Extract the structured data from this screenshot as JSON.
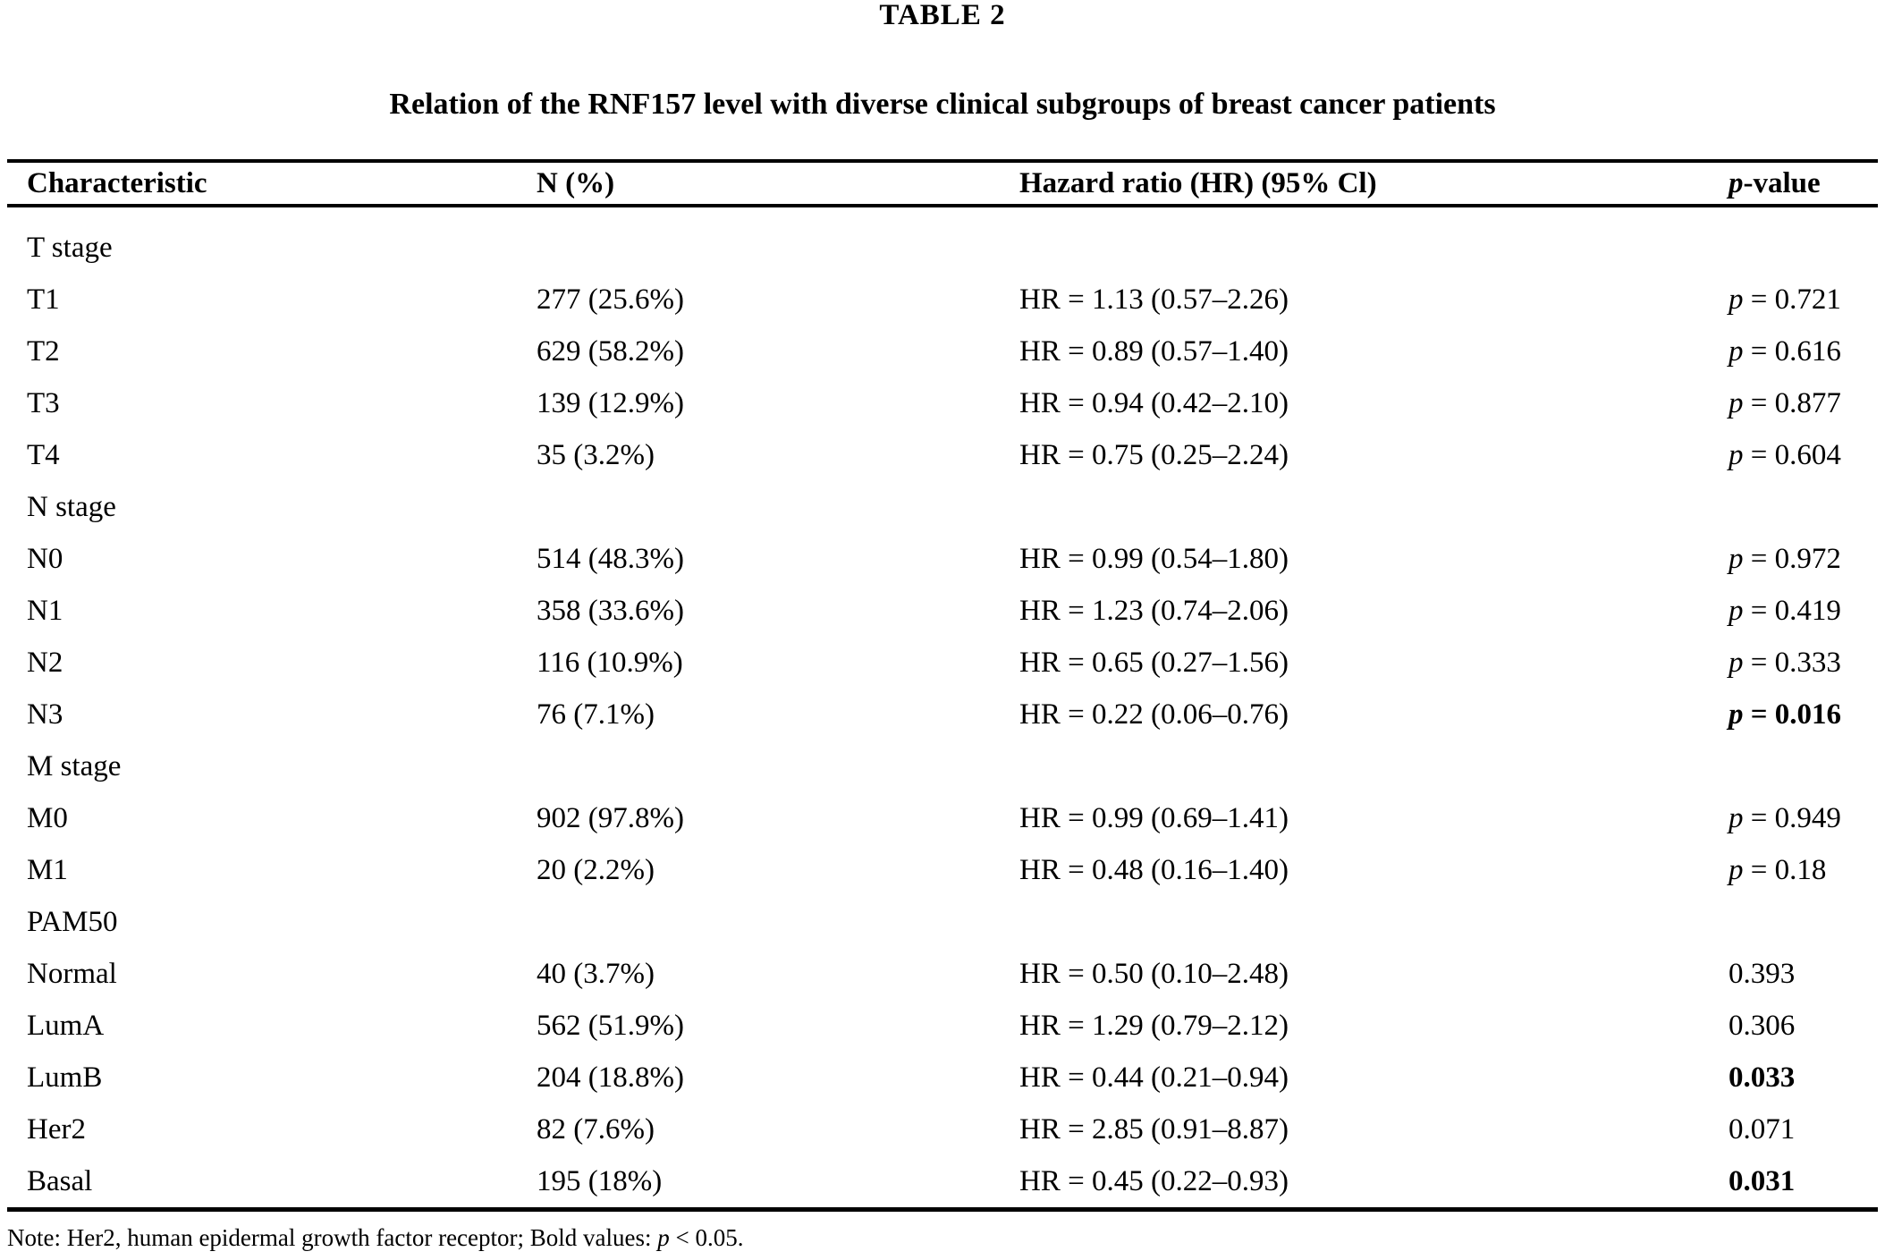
{
  "page": {
    "title": "TABLE 2",
    "subtitle": "Relation of the RNF157 level with diverse clinical subgroups of breast cancer patients"
  },
  "table": {
    "columns": [
      {
        "name": "characteristic",
        "parts": [
          {
            "text": "Characteristic"
          }
        ]
      },
      {
        "name": "n-percent",
        "parts": [
          {
            "text": "N (%)"
          }
        ]
      },
      {
        "name": "hazard-ratio",
        "parts": [
          {
            "text": "Hazard ratio (HR) (95% Cl)"
          }
        ]
      },
      {
        "name": "p-value",
        "parts": [
          {
            "text": "p",
            "italic": true
          },
          {
            "text": "-value"
          }
        ]
      }
    ],
    "rows": [
      {
        "group": true,
        "characteristic": "T stage",
        "n": "",
        "hr": "",
        "p_parts": [],
        "p_bold": false
      },
      {
        "group": false,
        "characteristic": "T1",
        "n": "277 (25.6%)",
        "hr": "HR = 1.13 (0.57–2.26)",
        "p_parts": [
          {
            "text": "p",
            "italic": true
          },
          {
            "text": " = 0.721"
          }
        ],
        "p_bold": false
      },
      {
        "group": false,
        "characteristic": "T2",
        "n": "629 (58.2%)",
        "hr": "HR = 0.89 (0.57–1.40)",
        "p_parts": [
          {
            "text": "p",
            "italic": true
          },
          {
            "text": " = 0.616"
          }
        ],
        "p_bold": false
      },
      {
        "group": false,
        "characteristic": "T3",
        "n": "139 (12.9%)",
        "hr": "HR = 0.94 (0.42–2.10)",
        "p_parts": [
          {
            "text": "p",
            "italic": true
          },
          {
            "text": " = 0.877"
          }
        ],
        "p_bold": false
      },
      {
        "group": false,
        "characteristic": "T4",
        "n": "35 (3.2%)",
        "hr": "HR = 0.75 (0.25–2.24)",
        "p_parts": [
          {
            "text": "p",
            "italic": true
          },
          {
            "text": " = 0.604"
          }
        ],
        "p_bold": false
      },
      {
        "group": true,
        "characteristic": "N stage",
        "n": "",
        "hr": "",
        "p_parts": [],
        "p_bold": false
      },
      {
        "group": false,
        "characteristic": "N0",
        "n": "514 (48.3%)",
        "hr": "HR = 0.99 (0.54–1.80)",
        "p_parts": [
          {
            "text": "p",
            "italic": true
          },
          {
            "text": " = 0.972"
          }
        ],
        "p_bold": false
      },
      {
        "group": false,
        "characteristic": "N1",
        "n": "358 (33.6%)",
        "hr": "HR = 1.23 (0.74–2.06)",
        "p_parts": [
          {
            "text": "p",
            "italic": true
          },
          {
            "text": " = 0.419"
          }
        ],
        "p_bold": false
      },
      {
        "group": false,
        "characteristic": "N2",
        "n": "116 (10.9%)",
        "hr": "HR = 0.65 (0.27–1.56)",
        "p_parts": [
          {
            "text": "p",
            "italic": true
          },
          {
            "text": " = 0.333"
          }
        ],
        "p_bold": false
      },
      {
        "group": false,
        "characteristic": "N3",
        "n": "76 (7.1%)",
        "hr": "HR = 0.22 (0.06–0.76)",
        "p_parts": [
          {
            "text": "p",
            "italic": true
          },
          {
            "text": " = 0.016"
          }
        ],
        "p_bold": true
      },
      {
        "group": true,
        "characteristic": "M stage",
        "n": "",
        "hr": "",
        "p_parts": [],
        "p_bold": false
      },
      {
        "group": false,
        "characteristic": "M0",
        "n": "902 (97.8%)",
        "hr": "HR = 0.99 (0.69–1.41)",
        "p_parts": [
          {
            "text": "p",
            "italic": true
          },
          {
            "text": " = 0.949"
          }
        ],
        "p_bold": false
      },
      {
        "group": false,
        "characteristic": "M1",
        "n": "20 (2.2%)",
        "hr": "HR = 0.48 (0.16–1.40)",
        "p_parts": [
          {
            "text": "p",
            "italic": true
          },
          {
            "text": " = 0.18"
          }
        ],
        "p_bold": false
      },
      {
        "group": true,
        "characteristic": "PAM50",
        "n": "",
        "hr": "",
        "p_parts": [],
        "p_bold": false
      },
      {
        "group": false,
        "characteristic": "Normal",
        "n": "40 (3.7%)",
        "hr": "HR = 0.50 (0.10–2.48)",
        "p_parts": [
          {
            "text": "0.393"
          }
        ],
        "p_bold": false
      },
      {
        "group": false,
        "characteristic": "LumA",
        "n": "562 (51.9%)",
        "hr": "HR = 1.29 (0.79–2.12)",
        "p_parts": [
          {
            "text": "0.306"
          }
        ],
        "p_bold": false
      },
      {
        "group": false,
        "characteristic": "LumB",
        "n": "204 (18.8%)",
        "hr": "HR = 0.44 (0.21–0.94)",
        "p_parts": [
          {
            "text": "0.033"
          }
        ],
        "p_bold": true
      },
      {
        "group": false,
        "characteristic": "Her2",
        "n": "82 (7.6%)",
        "hr": "HR = 2.85 (0.91–8.87)",
        "p_parts": [
          {
            "text": "0.071"
          }
        ],
        "p_bold": false
      },
      {
        "group": false,
        "characteristic": "Basal",
        "n": "195 (18%)",
        "hr": "HR = 0.45 (0.22–0.93)",
        "p_parts": [
          {
            "text": "0.031"
          }
        ],
        "p_bold": true
      }
    ],
    "note_parts": [
      {
        "text": "Note: Her2, human epidermal growth factor receptor; Bold values: "
      },
      {
        "text": "p",
        "italic": true
      },
      {
        "text": " < 0.05."
      }
    ]
  }
}
